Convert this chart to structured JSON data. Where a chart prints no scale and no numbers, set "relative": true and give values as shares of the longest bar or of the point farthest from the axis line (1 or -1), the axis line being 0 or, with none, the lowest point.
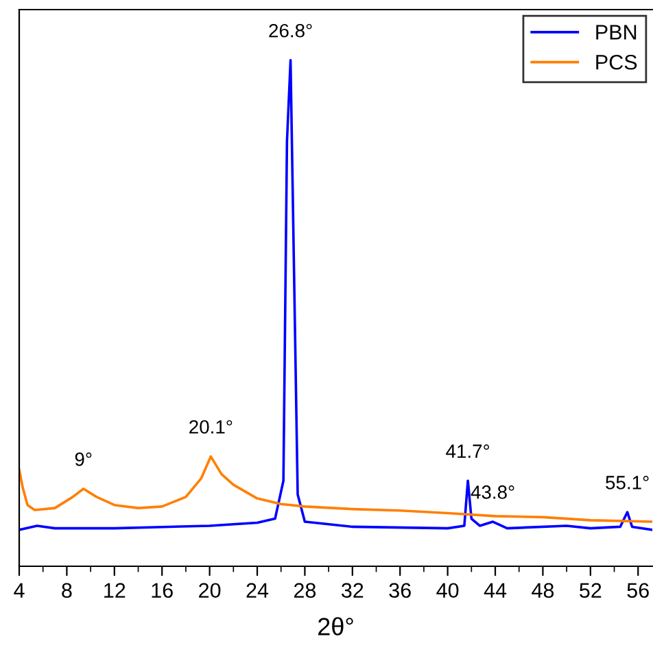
{
  "chart_data": {
    "type": "line",
    "xlabel": "2θ°",
    "relative": true,
    "xlim": [
      4,
      57.2
    ],
    "xticks": [
      4,
      8,
      12,
      16,
      20,
      24,
      28,
      32,
      36,
      40,
      44,
      48,
      52,
      56
    ],
    "tick_labels": "x",
    "legend": "top right",
    "grid": false,
    "series": [
      {
        "name": "PBN",
        "color": "#0000ff",
        "x": [
          4,
          5.5,
          7,
          12,
          20,
          24,
          25.5,
          26.2,
          26.5,
          26.8,
          27.1,
          27.4,
          28,
          32,
          40,
          41.4,
          41.7,
          42,
          42.7,
          43.8,
          45,
          50,
          52,
          54.5,
          55.1,
          55.5,
          57.2
        ],
        "values": [
          0.072,
          0.08,
          0.075,
          0.075,
          0.08,
          0.086,
          0.094,
          0.169,
          0.84,
          1.0,
          0.571,
          0.142,
          0.088,
          0.078,
          0.075,
          0.08,
          0.169,
          0.094,
          0.08,
          0.088,
          0.075,
          0.08,
          0.075,
          0.078,
          0.107,
          0.078,
          0.072
        ]
      },
      {
        "name": "PCS",
        "color": "#ff7f00",
        "x": [
          4,
          4.3,
          4.7,
          5.3,
          7,
          8.5,
          9.4,
          10.5,
          12,
          14,
          16,
          18,
          19.3,
          20.1,
          21,
          22,
          24,
          26,
          28,
          32,
          36,
          40,
          44,
          48,
          52,
          57.2
        ],
        "values": [
          0.191,
          0.155,
          0.121,
          0.111,
          0.115,
          0.137,
          0.153,
          0.137,
          0.121,
          0.115,
          0.118,
          0.137,
          0.174,
          0.217,
          0.182,
          0.161,
          0.134,
          0.123,
          0.118,
          0.113,
          0.11,
          0.105,
          0.099,
          0.097,
          0.091,
          0.088
        ]
      }
    ],
    "annotations": [
      {
        "text": "9°",
        "x": 9.4,
        "y": 0.153
      },
      {
        "text": "20.1°",
        "x": 20.1,
        "y": 0.217
      },
      {
        "text": "26.8°",
        "x": 26.8,
        "y": 1.0
      },
      {
        "text": "41.7°",
        "x": 41.7,
        "y": 0.169
      },
      {
        "text": "43.8°",
        "x": 43.8,
        "y": 0.088
      },
      {
        "text": "55.1°",
        "x": 55.1,
        "y": 0.107
      }
    ]
  }
}
